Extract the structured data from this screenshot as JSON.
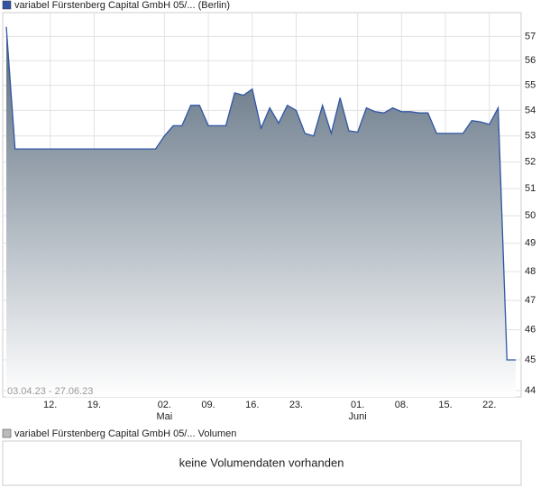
{
  "chart_data": {
    "type": "area",
    "series": [
      {
        "name": "variabel Fürstenberg Capital GmbH 05/... (Berlin)",
        "color": "#2f55a4",
        "values": [
          57.4,
          52.5,
          52.5,
          52.5,
          52.5,
          52.5,
          52.5,
          52.5,
          52.5,
          52.5,
          52.5,
          52.5,
          52.5,
          52.5,
          52.5,
          52.5,
          52.5,
          52.5,
          53.0,
          53.4,
          53.4,
          54.2,
          54.2,
          53.4,
          53.4,
          53.4,
          54.7,
          54.6,
          54.85,
          53.3,
          54.1,
          53.5,
          54.2,
          54.0,
          53.1,
          53.0,
          54.2,
          53.1,
          54.5,
          53.2,
          53.15,
          54.1,
          53.95,
          53.9,
          54.1,
          53.95,
          53.95,
          53.9,
          53.9,
          53.1,
          53.1,
          53.1,
          53.1,
          53.6,
          53.55,
          53.45,
          54.1,
          45.0,
          45.0
        ]
      }
    ],
    "x": [
      "03.04.23",
      "04.04.23",
      "05.04.23",
      "06.04.23",
      "11.04.23",
      "12.04.23",
      "13.04.23",
      "14.04.23",
      "17.04.23",
      "18.04.23",
      "19.04.23",
      "20.04.23",
      "21.04.23",
      "24.04.23",
      "25.04.23",
      "26.04.23",
      "27.04.23",
      "28.04.23",
      "02.05.23",
      "03.05.23",
      "04.05.23",
      "05.05.23",
      "08.05.23",
      "09.05.23",
      "10.05.23",
      "11.05.23",
      "12.05.23",
      "15.05.23",
      "16.05.23",
      "17.05.23",
      "18.05.23",
      "19.05.23",
      "22.05.23",
      "23.05.23",
      "24.05.23",
      "25.05.23",
      "26.05.23",
      "29.05.23",
      "30.05.23",
      "31.05.23",
      "01.06.23",
      "02.06.23",
      "05.06.23",
      "06.06.23",
      "07.06.23",
      "08.06.23",
      "09.06.23",
      "12.06.23",
      "13.06.23",
      "14.06.23",
      "15.06.23",
      "16.06.23",
      "19.06.23",
      "20.06.23",
      "21.06.23",
      "22.06.23",
      "23.06.23",
      "26.06.23",
      "27.06.23"
    ],
    "xticks": [
      {
        "value": "12.04.23",
        "label": "12."
      },
      {
        "value": "19.04.23",
        "label": "19."
      },
      {
        "value": "02.05.23",
        "label": "02."
      },
      {
        "value": "09.05.23",
        "label": "09."
      },
      {
        "value": "16.05.23",
        "label": "16."
      },
      {
        "value": "23.05.23",
        "label": "23."
      },
      {
        "value": "01.06.23",
        "label": "01."
      },
      {
        "value": "08.06.23",
        "label": "08."
      },
      {
        "value": "15.06.23",
        "label": "15."
      },
      {
        "value": "22.06.23",
        "label": "22."
      }
    ],
    "month_labels": [
      {
        "value": "02.05.23",
        "label": "Mai"
      },
      {
        "value": "01.06.23",
        "label": "Juni"
      }
    ],
    "range_label": "03.04.23 - 27.06.23",
    "ylim": [
      43.8,
      58
    ],
    "yticks": [
      44,
      45,
      46,
      47,
      48,
      49,
      50,
      51,
      52,
      53,
      54,
      55,
      56,
      57
    ],
    "log_scale": true,
    "grid": true
  },
  "volume_panel": {
    "legend": "variabel Fürstenberg Capital GmbH 05/... Volumen",
    "message": "keine Volumendaten vorhanden"
  }
}
